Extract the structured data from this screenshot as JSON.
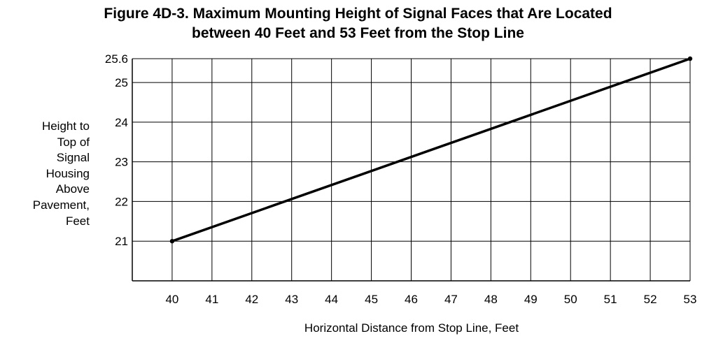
{
  "chart_data": {
    "type": "line",
    "title_line1": "Figure 4D-3.  Maximum Mounting Height of Signal Faces that Are Located",
    "title_line2": "between 40 Feet and 53 Feet from the Stop Line",
    "xlabel": "Horizontal Distance from Stop Line, Feet",
    "ylabel_lines": [
      "Height to",
      "Top of",
      "Signal",
      "Housing",
      "Above",
      "Pavement,",
      "Feet"
    ],
    "xlim": [
      39,
      53
    ],
    "ylim": [
      20,
      25.6
    ],
    "x_ticks": [
      40,
      41,
      42,
      43,
      44,
      45,
      46,
      47,
      48,
      49,
      50,
      51,
      52,
      53
    ],
    "y_ticks": [
      21,
      22,
      23,
      24,
      25,
      25.6
    ],
    "series": [
      {
        "x": [
          40,
          53
        ],
        "y": [
          21,
          25.6
        ]
      }
    ],
    "grid": true,
    "line_color": "#000000"
  }
}
